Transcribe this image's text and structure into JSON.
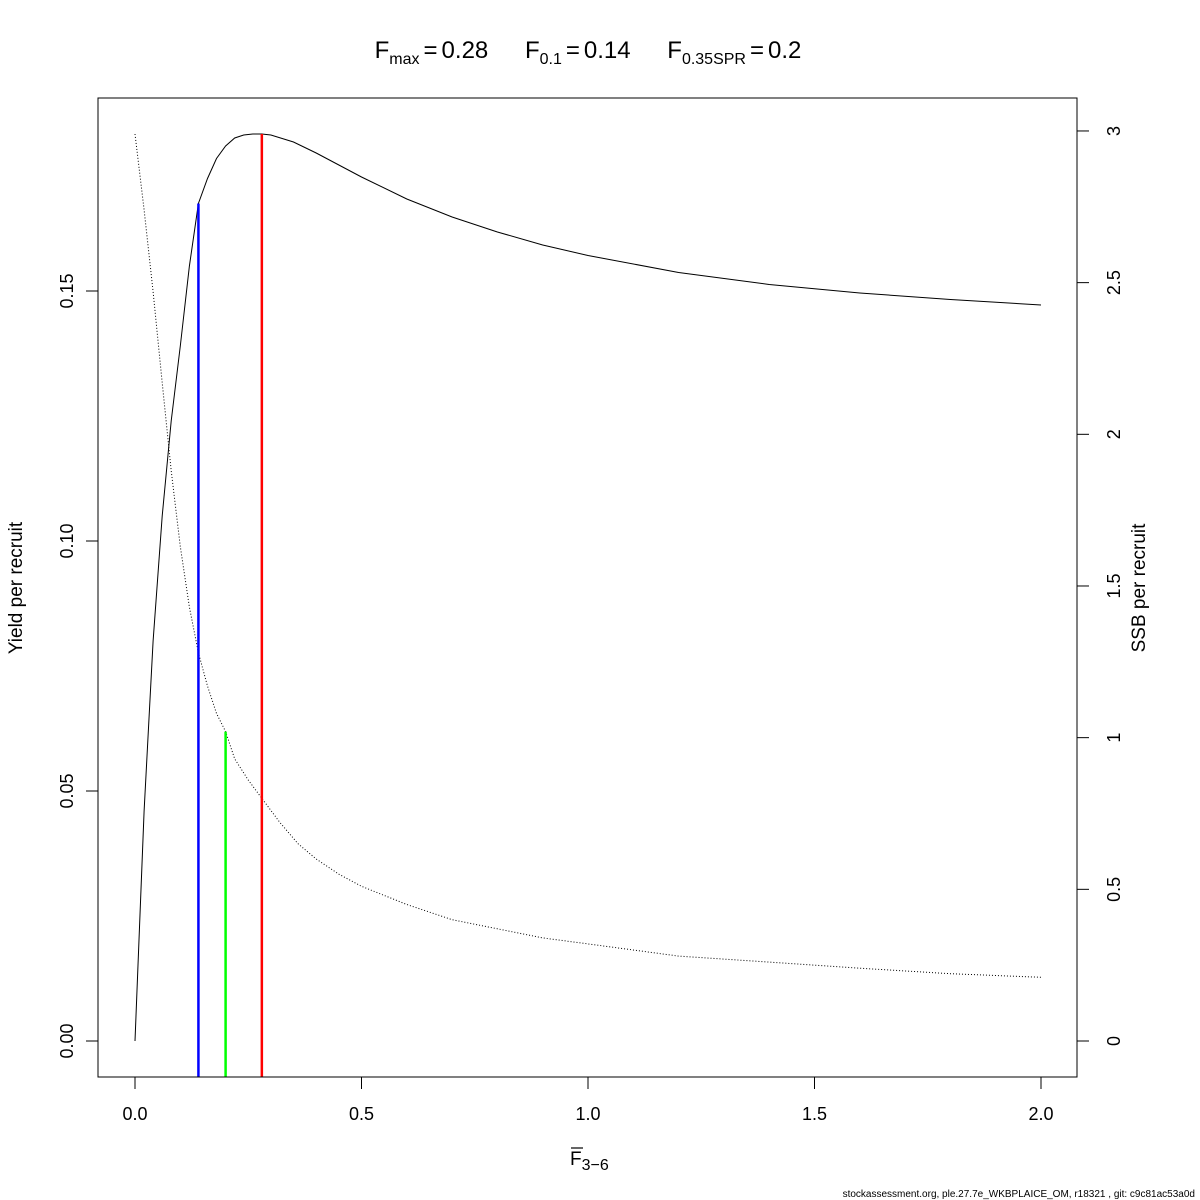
{
  "chart_data": {
    "type": "line",
    "title_parts": [
      {
        "main": "F",
        "sub": "max",
        "value": "0.28"
      },
      {
        "main": "F",
        "sub": "0.1",
        "value": "0.14"
      },
      {
        "main": "F",
        "sub": "0.35SPR",
        "value": "0.2"
      }
    ],
    "equals_sign": "=",
    "xlabel_main": "F",
    "xlabel_sub": "3−6",
    "ylabel": "Yield per recruit",
    "y2label": "SSB per recruit",
    "xlim": [
      0,
      2
    ],
    "ylim": [
      0,
      0.1814
    ],
    "y2lim": [
      0,
      2.99
    ],
    "xticks": [
      0,
      0.5,
      1,
      1.5,
      2
    ],
    "xtick_labels": [
      "0.0",
      "0.5",
      "1.0",
      "1.5",
      "2.0"
    ],
    "yticks": [
      0,
      0.05,
      0.1,
      0.15
    ],
    "ytick_labels": [
      "0.00",
      "0.05",
      "0.10",
      "0.15"
    ],
    "y2ticks": [
      0,
      0.5,
      1,
      1.5,
      2,
      2.5,
      3
    ],
    "y2tick_labels": [
      "0",
      "0.5",
      "1",
      "1.5",
      "2",
      "2.5",
      "3"
    ],
    "grid": false,
    "series": [
      {
        "style": "solid",
        "axis": "left",
        "points": [
          [
            0,
            0
          ],
          [
            0.02,
            0.046
          ],
          [
            0.04,
            0.08
          ],
          [
            0.06,
            0.105
          ],
          [
            0.08,
            0.124
          ],
          [
            0.1,
            0.139
          ],
          [
            0.12,
            0.155
          ],
          [
            0.14,
            0.1675
          ],
          [
            0.16,
            0.1725
          ],
          [
            0.18,
            0.1765
          ],
          [
            0.2,
            0.179
          ],
          [
            0.22,
            0.1806
          ],
          [
            0.24,
            0.1812
          ],
          [
            0.26,
            0.1814
          ],
          [
            0.28,
            0.1814
          ],
          [
            0.3,
            0.1812
          ],
          [
            0.35,
            0.1798
          ],
          [
            0.4,
            0.1776
          ],
          [
            0.5,
            0.1728
          ],
          [
            0.6,
            0.1684
          ],
          [
            0.7,
            0.1648
          ],
          [
            0.8,
            0.1618
          ],
          [
            0.9,
            0.1592
          ],
          [
            1.0,
            0.1571
          ],
          [
            1.2,
            0.1537
          ],
          [
            1.4,
            0.1513
          ],
          [
            1.6,
            0.1496
          ],
          [
            1.8,
            0.1483
          ],
          [
            2.0,
            0.1472
          ]
        ]
      },
      {
        "style": "dotted",
        "axis": "right",
        "points": [
          [
            0,
            2.99
          ],
          [
            0.02,
            2.74
          ],
          [
            0.04,
            2.47
          ],
          [
            0.06,
            2.17
          ],
          [
            0.08,
            1.88
          ],
          [
            0.1,
            1.63
          ],
          [
            0.12,
            1.43
          ],
          [
            0.14,
            1.28
          ],
          [
            0.16,
            1.17
          ],
          [
            0.18,
            1.08
          ],
          [
            0.2,
            1.02
          ],
          [
            0.22,
            0.93
          ],
          [
            0.25,
            0.86
          ],
          [
            0.28,
            0.8
          ],
          [
            0.32,
            0.72
          ],
          [
            0.36,
            0.65
          ],
          [
            0.4,
            0.6
          ],
          [
            0.45,
            0.55
          ],
          [
            0.5,
            0.51
          ],
          [
            0.6,
            0.45
          ],
          [
            0.7,
            0.4
          ],
          [
            0.8,
            0.37
          ],
          [
            0.9,
            0.34
          ],
          [
            1.0,
            0.32
          ],
          [
            1.2,
            0.28
          ],
          [
            1.4,
            0.26
          ],
          [
            1.6,
            0.24
          ],
          [
            1.8,
            0.222
          ],
          [
            2.0,
            0.21
          ]
        ]
      }
    ],
    "reference_lines": [
      {
        "x": 0.14,
        "ytop": 0.1675,
        "axis": "left",
        "color": "#0000ff"
      },
      {
        "x": 0.2,
        "ytop": 1.02,
        "axis": "right",
        "color": "#00ff00"
      },
      {
        "x": 0.28,
        "ytop": 0.1814,
        "axis": "left",
        "color": "#ff0000"
      }
    ],
    "footer": "stockassessment.org, ple.27.7e_WKBPLAICE_OM, r18321 , git: c9c81ac53a0d"
  }
}
